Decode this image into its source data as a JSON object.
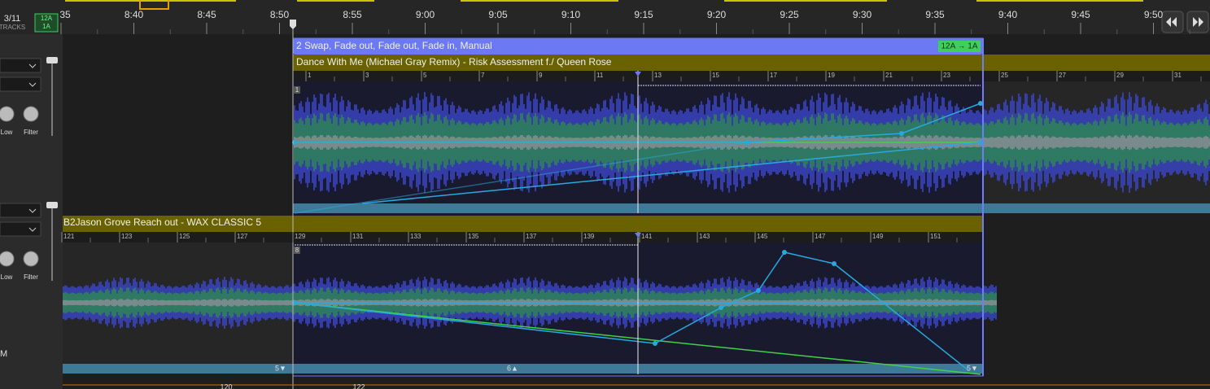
{
  "header": {
    "track_count": "3/11",
    "tracks_label": "TRACKS",
    "key_from": "12A",
    "key_to": "1A"
  },
  "timeline": {
    "labels": [
      "35",
      "8:40",
      "8:45",
      "8:50",
      "8:55",
      "9:00",
      "9:05",
      "9:10",
      "9:15",
      "9:20",
      "9:25",
      "9:30",
      "9:35",
      "9:40",
      "9:45",
      "9:50"
    ]
  },
  "transition": {
    "title": "2 Swap, Fade out, Fade out, Fade in, Manual",
    "key_change": "12A → 1A"
  },
  "deck1": {
    "title": "Dance With Me (Michael Gray Remix) - Risk Assessment f./ Queen Rose",
    "beats": [
      1,
      3,
      5,
      7,
      9,
      11,
      13,
      15,
      17,
      19,
      21,
      23,
      25,
      27,
      29,
      31
    ],
    "marker": "1",
    "knobs": [
      "Low",
      "Filter"
    ]
  },
  "deck2": {
    "title": "B2Jason Grove Reach out - WAX CLASSIC 5",
    "beats": [
      121,
      123,
      125,
      127,
      129,
      131,
      133,
      135,
      137,
      139,
      141,
      143,
      145,
      147,
      149,
      151
    ],
    "marker": "8",
    "knobs": [
      "Low",
      "Filter"
    ],
    "loop_labels": [
      "5▼",
      "6▲",
      "5▼"
    ]
  },
  "left_label": "M",
  "bottom_ruler": [
    "120",
    "122"
  ]
}
